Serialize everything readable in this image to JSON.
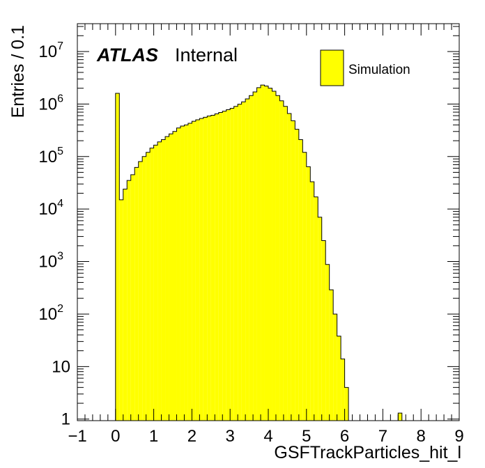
{
  "chart_data": {
    "type": "bar",
    "title": "",
    "xlabel": "GSFTrackParticles_hit_l",
    "ylabel": "Entries / 0.1",
    "xlim": [
      -1,
      9
    ],
    "ylim_log10": [
      -0.03,
      7.53
    ],
    "log_y": true,
    "x_ticks": [
      "−1",
      "0",
      "1",
      "2",
      "3",
      "4",
      "5",
      "6",
      "7",
      "8",
      "9"
    ],
    "y_ticks": [
      {
        "base": "1",
        "exp": ""
      },
      {
        "base": "10",
        "exp": ""
      },
      {
        "base": "10",
        "exp": "2"
      },
      {
        "base": "10",
        "exp": "3"
      },
      {
        "base": "10",
        "exp": "4"
      },
      {
        "base": "10",
        "exp": "5"
      },
      {
        "base": "10",
        "exp": "6"
      },
      {
        "base": "10",
        "exp": "7"
      }
    ],
    "fill_color": "#ffff00",
    "line_color": "#000000",
    "bin_width": 0.1,
    "bin_low_edges": [
      0.0,
      0.1,
      0.2,
      0.3,
      0.4,
      0.5,
      0.6,
      0.7,
      0.8,
      0.9,
      1.0,
      1.1,
      1.2,
      1.3,
      1.4,
      1.5,
      1.6,
      1.7,
      1.8,
      1.9,
      2.0,
      2.1,
      2.2,
      2.3,
      2.4,
      2.5,
      2.6,
      2.7,
      2.8,
      2.9,
      3.0,
      3.1,
      3.2,
      3.3,
      3.4,
      3.5,
      3.6,
      3.7,
      3.8,
      3.9,
      4.0,
      4.1,
      4.2,
      4.3,
      4.4,
      4.5,
      4.6,
      4.7,
      4.8,
      4.9,
      5.0,
      5.1,
      5.2,
      5.3,
      5.4,
      5.5,
      5.6,
      5.7,
      5.8,
      5.9,
      6.0,
      6.1,
      6.2,
      6.3,
      6.4,
      6.5,
      6.6,
      6.7,
      6.8,
      6.9,
      7.0,
      7.1,
      7.2,
      7.3,
      7.4,
      7.5
    ],
    "values": [
      1600000,
      15000,
      24000,
      35000,
      45000,
      62000,
      80000,
      100000,
      120000,
      145000,
      165000,
      190000,
      210000,
      240000,
      270000,
      300000,
      350000,
      380000,
      400000,
      430000,
      470000,
      500000,
      530000,
      560000,
      590000,
      610000,
      650000,
      690000,
      730000,
      780000,
      830000,
      900000,
      990000,
      1100000,
      1250000,
      1450000,
      1700000,
      2050000,
      2300000,
      2200000,
      2000000,
      1750000,
      1450000,
      1150000,
      900000,
      660000,
      480000,
      330000,
      210000,
      120000,
      64000,
      33000,
      17000,
      7000,
      2500,
      880,
      290,
      100,
      38,
      14,
      4,
      0,
      0,
      0,
      0,
      0,
      0,
      0,
      0,
      0,
      0,
      0,
      0,
      0,
      1.3,
      0
    ],
    "legend": [
      {
        "name": "Simulation",
        "color": "#ffff00"
      }
    ],
    "legend_position": "top-right",
    "annotation": {
      "atlas": "ATLAS",
      "status": "Internal"
    }
  }
}
